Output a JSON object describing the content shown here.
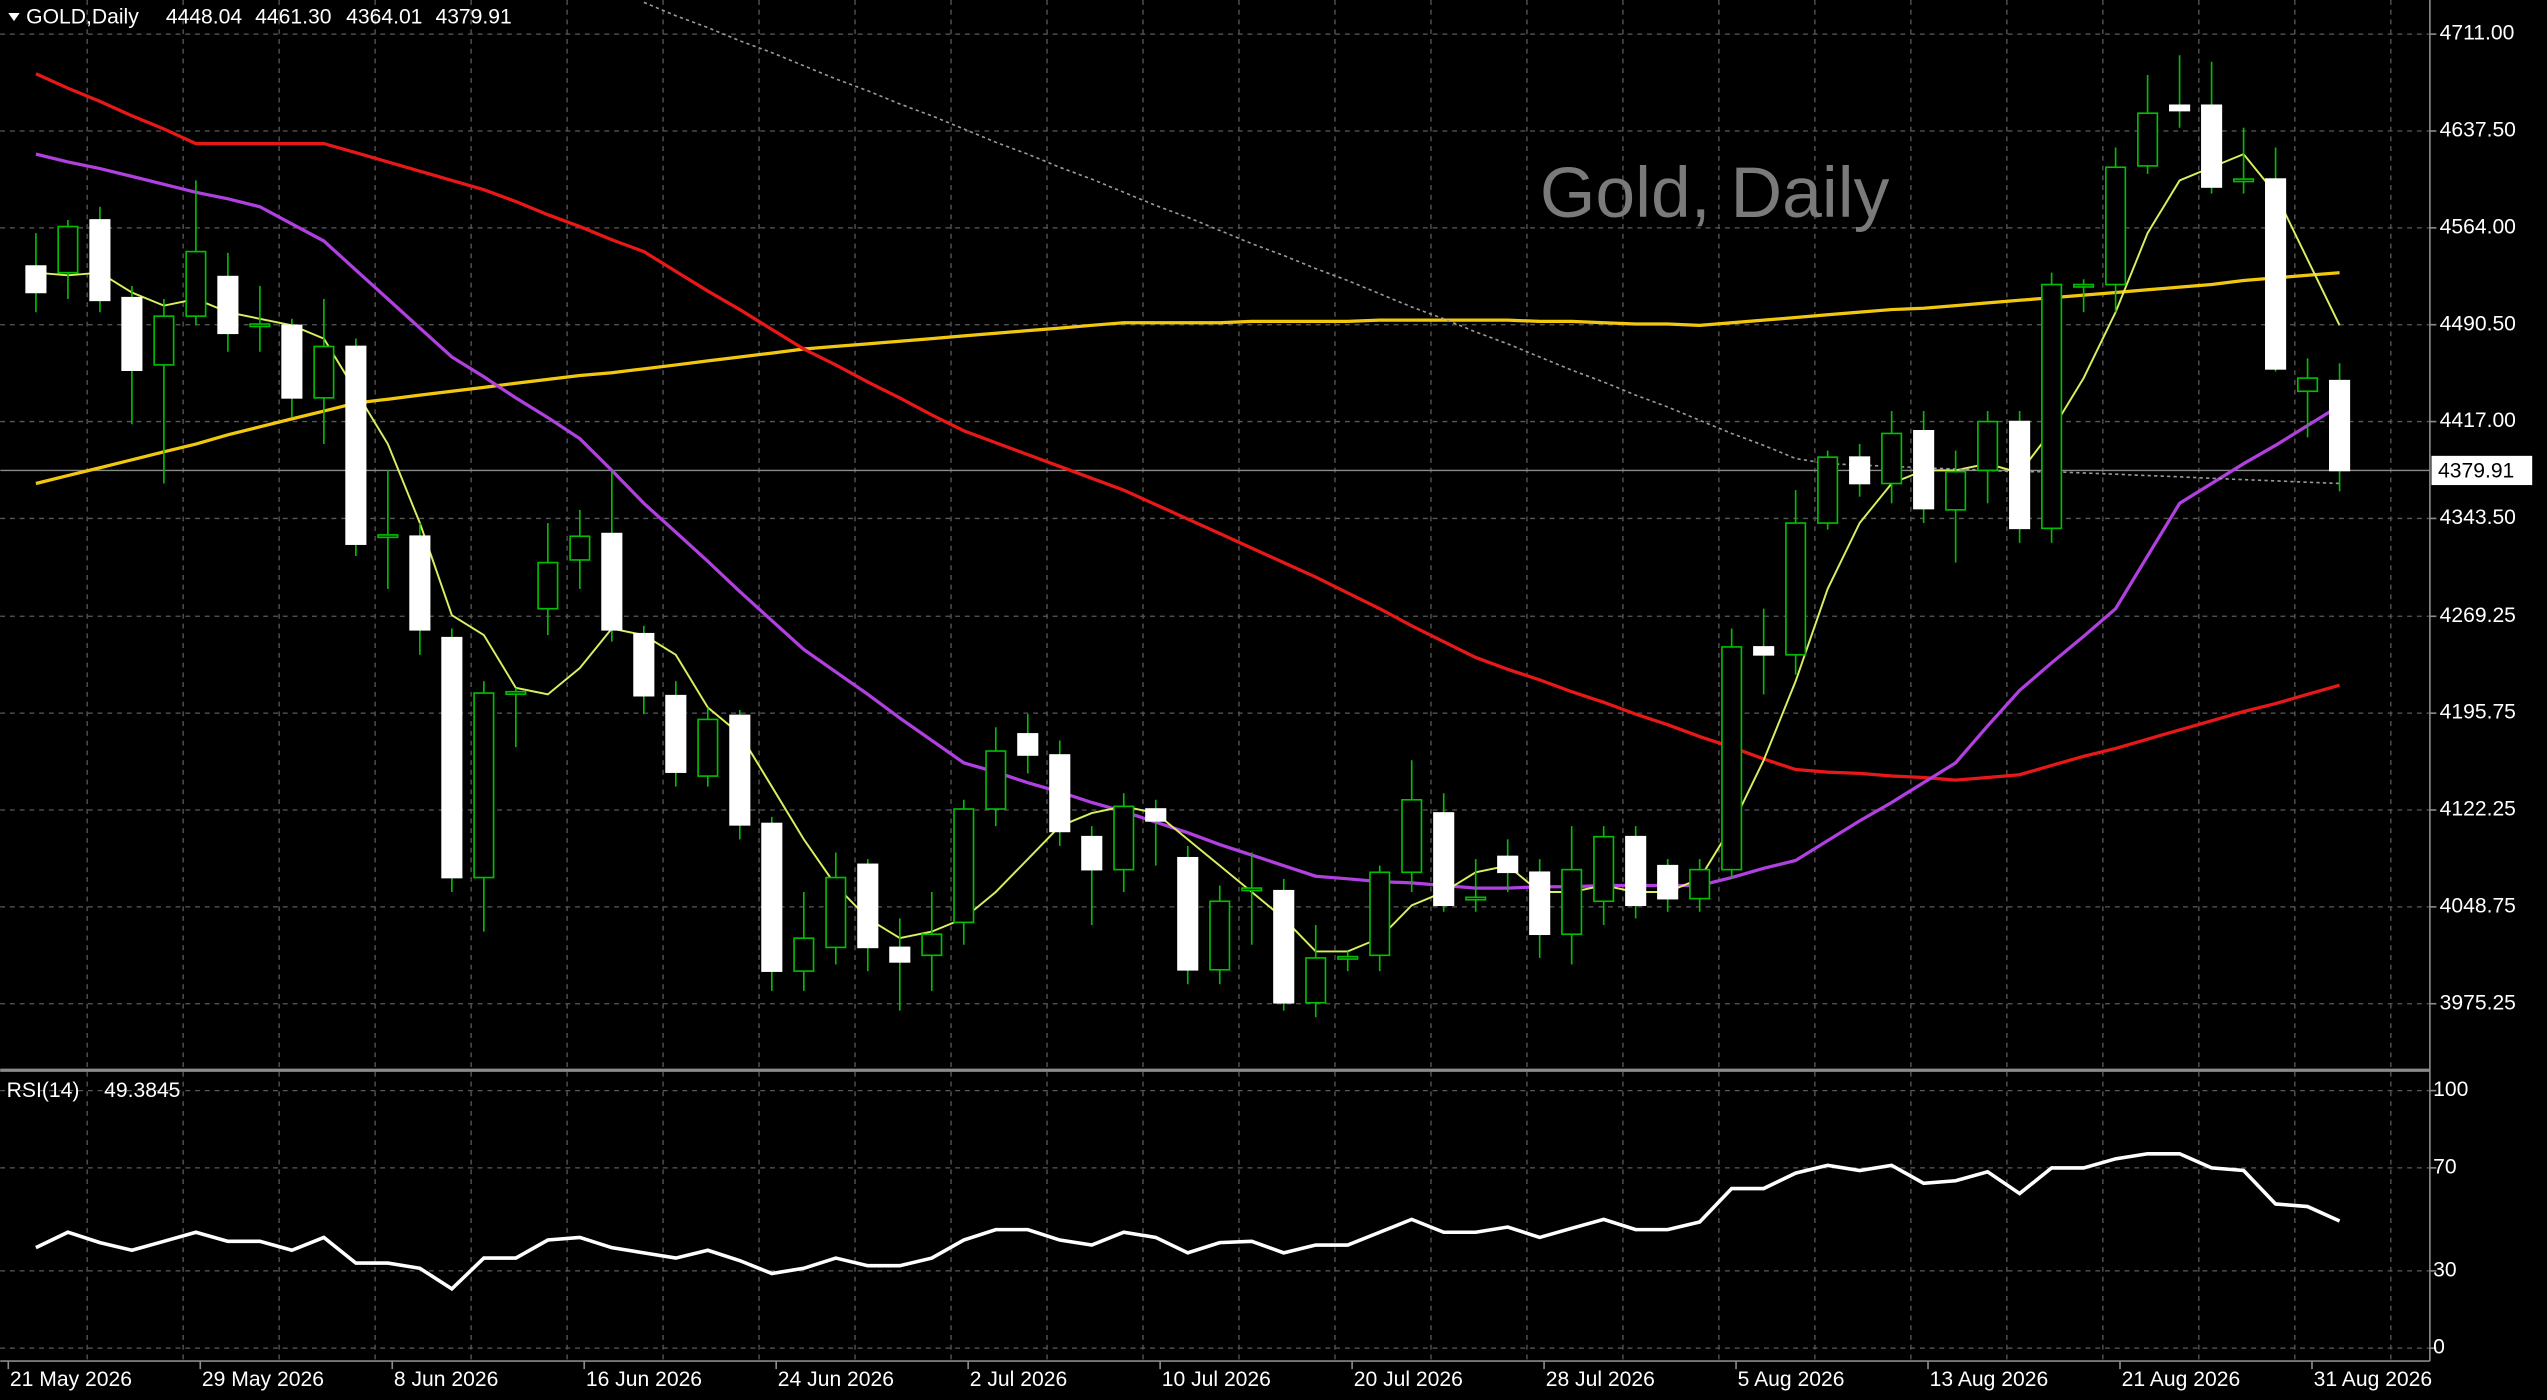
{
  "chart_data": [
    {
      "type": "candlestick",
      "title": "Gold, Daily",
      "header": {
        "symbol": "GOLD,Daily",
        "ohlc": [
          "4448.04",
          "4461.30",
          "4364.01",
          "4379.91"
        ]
      },
      "categories": [
        "21 May 2026",
        null,
        null,
        null,
        null,
        null,
        "29 May 2026",
        null,
        null,
        null,
        null,
        null,
        "8 Jun 2026",
        null,
        null,
        null,
        null,
        null,
        "16 Jun 2026",
        null,
        null,
        null,
        null,
        null,
        "24 Jun 2026",
        null,
        null,
        null,
        null,
        null,
        "2 Jul 2026",
        null,
        null,
        null,
        null,
        null,
        "10 Jul 2026",
        null,
        null,
        null,
        null,
        null,
        "20 Jul 2026",
        null,
        null,
        null,
        null,
        null,
        "28 Jul 2026",
        null,
        null,
        null,
        null,
        null,
        "5 Aug 2026",
        null,
        null,
        null,
        null,
        null,
        "13 Aug 2026",
        null,
        null,
        null,
        null,
        null,
        "21 Aug 2026",
        null,
        null,
        null,
        null,
        null,
        "31 Aug 2026"
      ],
      "open": [
        4535,
        4530,
        4570,
        4511,
        4460,
        4497,
        4527,
        4490,
        4490,
        4435,
        4474,
        4330,
        4330,
        4253,
        4071,
        4211,
        4275,
        4312,
        4332,
        4256,
        4209,
        4148,
        4194,
        4112,
        4000,
        4018,
        4081,
        4018,
        4012,
        4037,
        4123,
        4180,
        4164,
        4102,
        4077,
        4123,
        4086,
        4001,
        4062,
        4061,
        3976,
        4010,
        4012,
        4075,
        4120,
        4055,
        4087,
        4075,
        4028,
        4053,
        4102,
        4080,
        4055,
        4077,
        4246,
        4240,
        4340,
        4390,
        4370,
        4410,
        4350,
        4380,
        4417,
        4336,
        4520,
        4521,
        4611,
        4657,
        4657,
        4600,
        4601,
        4440,
        4448.04
      ],
      "high": [
        4560,
        4570,
        4580,
        4520,
        4510,
        4600,
        4545,
        4520,
        4495,
        4510,
        4480,
        4380,
        4340,
        4260,
        4220,
        4215,
        4340,
        4350,
        4380,
        4262,
        4220,
        4200,
        4198,
        4117,
        4060,
        4090,
        4085,
        4040,
        4060,
        4130,
        4185,
        4195,
        4175,
        4110,
        4135,
        4130,
        4095,
        4065,
        4090,
        4070,
        4035,
        4015,
        4080,
        4160,
        4135,
        4085,
        4100,
        4085,
        4110,
        4110,
        4110,
        4085,
        4085,
        4260,
        4275,
        4365,
        4395,
        4400,
        4425,
        4425,
        4395,
        4425,
        4425,
        4530,
        4525,
        4625,
        4680,
        4695,
        4690,
        4640,
        4625,
        4465,
        4461.3
      ],
      "low": [
        4500,
        4510,
        4500,
        4415,
        4370,
        4490,
        4470,
        4470,
        4420,
        4400,
        4315,
        4290,
        4240,
        4060,
        4030,
        4170,
        4255,
        4290,
        4250,
        4195,
        4140,
        4140,
        4100,
        3985,
        3985,
        4005,
        4000,
        3970,
        3985,
        4020,
        4110,
        4150,
        4095,
        4035,
        4060,
        4080,
        3990,
        3990,
        4020,
        3970,
        3965,
        4000,
        4000,
        4060,
        4045,
        4045,
        4060,
        4010,
        4005,
        4035,
        4040,
        4045,
        4045,
        4070,
        4210,
        4225,
        4335,
        4360,
        4355,
        4340,
        4310,
        4355,
        4325,
        4325,
        4500,
        4500,
        4605,
        4640,
        4590,
        4590,
        4455,
        4405,
        4364.01
      ],
      "close": [
        4515,
        4565,
        4509,
        4456,
        4497,
        4546,
        4484,
        4491,
        4435,
        4474,
        4324,
        4331,
        4259,
        4071,
        4211,
        4212,
        4310,
        4330,
        4259,
        4209,
        4151,
        4191,
        4111,
        4000,
        4025,
        4071,
        4018,
        4007,
        4028,
        4123,
        4167,
        4164,
        4106,
        4077,
        4125,
        4114,
        4001,
        4053,
        4063,
        3976,
        4010,
        4011,
        4075,
        4130,
        4050,
        4056,
        4075,
        4028,
        4077,
        4102,
        4050,
        4055,
        4077,
        4246,
        4240,
        4340,
        4390,
        4370,
        4408,
        4351,
        4379,
        4417,
        4336,
        4521,
        4521,
        4610,
        4651,
        4653,
        4595,
        4601,
        4457,
        4450,
        4379.91
      ],
      "candle_colors": {
        "up_fill": "#000000",
        "down_fill": "#ffffff",
        "wick": "#00c000"
      },
      "series": [
        {
          "color": "#f2c80f",
          "width": 2,
          "values": [
            4370,
            4376,
            4382,
            4388,
            4394,
            4400,
            4407,
            4413,
            4419,
            4425,
            4431,
            4434,
            4437,
            4440,
            4443,
            4446,
            4449,
            4452,
            4454,
            4457,
            4460,
            4463,
            4466,
            4469,
            4472,
            4474,
            4476,
            4478,
            4480,
            4482,
            4484,
            4486,
            4488,
            4490,
            4492,
            4492,
            4492,
            4492,
            4493,
            4493,
            4493,
            4493,
            4494,
            4494,
            4494,
            4494,
            4494,
            4493,
            4493,
            4492,
            4491,
            4491,
            4490,
            4492,
            4494,
            4496,
            4498,
            4500,
            4502,
            4503,
            4505,
            4507,
            4509,
            4511,
            4513,
            4515,
            4517,
            4519,
            4521,
            4524,
            4526,
            4528,
            4530
          ]
        },
        {
          "color": "#e81818",
          "width": 2,
          "values": [
            4681,
            4670,
            4660,
            4649,
            4639,
            4628,
            4628,
            4628,
            4628,
            4628,
            4621,
            4614,
            4607,
            4600,
            4593,
            4584,
            4574,
            4565,
            4555,
            4546,
            4531,
            4516,
            4502,
            4487,
            4472,
            4460,
            4447,
            4435,
            4422,
            4410,
            4401,
            4392,
            4383,
            4374,
            4365,
            4354,
            4343,
            4332,
            4321,
            4310,
            4299,
            4287,
            4275,
            4262,
            4250,
            4238,
            4229,
            4221,
            4212,
            4204,
            4195,
            4187,
            4178,
            4170,
            4161,
            4153,
            4151,
            4150,
            4148,
            4147,
            4145,
            4147,
            4149,
            4156,
            4163,
            4169,
            4176,
            4183,
            4190,
            4197,
            4203,
            4210,
            4217
          ]
        },
        {
          "color": "#b040e0",
          "width": 2,
          "values": [
            4620,
            4614,
            4609,
            4603,
            4597,
            4591,
            4586,
            4580,
            4567,
            4554,
            4532,
            4510,
            4488,
            4466,
            4451,
            4435,
            4420,
            4404,
            4380,
            4355,
            4333,
            4311,
            4288,
            4266,
            4244,
            4227,
            4210,
            4192,
            4175,
            4158,
            4151,
            4143,
            4136,
            4128,
            4121,
            4113,
            4105,
            4096,
            4088,
            4080,
            4072,
            4070,
            4068,
            4067,
            4065,
            4063,
            4063,
            4064,
            4064,
            4065,
            4065,
            4065,
            4065,
            4071,
            4078,
            4084,
            4099,
            4114,
            4128,
            4143,
            4158,
            4186,
            4213,
            4234,
            4254,
            4275,
            4315,
            4355,
            4370,
            4385,
            4399,
            4414,
            4429
          ]
        },
        {
          "color": "#d8f060",
          "width": 1.2,
          "values": [
            4530,
            4528,
            4530,
            4515,
            4505,
            4510,
            4500,
            4495,
            4490,
            4480,
            4440,
            4400,
            4340,
            4270,
            4255,
            4215,
            4210,
            4230,
            4260,
            4255,
            4240,
            4200,
            4180,
            4140,
            4100,
            4065,
            4040,
            4025,
            4030,
            4040,
            4060,
            4085,
            4110,
            4120,
            4125,
            4120,
            4100,
            4080,
            4060,
            4040,
            4015,
            4015,
            4025,
            4050,
            4060,
            4075,
            4080,
            4060,
            4060,
            4065,
            4060,
            4060,
            4070,
            4110,
            4160,
            4220,
            4290,
            4340,
            4370,
            4380,
            4380,
            4385,
            4378,
            4410,
            4450,
            4500,
            4560,
            4600,
            4610,
            4620,
            4590,
            4540,
            4490
          ]
        },
        {
          "color": "#9a9a9a",
          "width": 1,
          "dashed": true,
          "values": [
            null,
            null,
            null,
            null,
            null,
            null,
            null,
            null,
            null,
            null,
            null,
            null,
            null,
            null,
            null,
            null,
            null,
            null,
            null,
            4735,
            4725,
            4716,
            4706,
            4697,
            4687,
            4677,
            4668,
            4658,
            4649,
            4639,
            4629,
            4620,
            4610,
            4601,
            4591,
            4581,
            4572,
            4562,
            4552,
            4543,
            4533,
            4524,
            4514,
            4504,
            4495,
            4485,
            4476,
            4466,
            4456,
            4447,
            4437,
            4428,
            4418,
            4408,
            4399,
            4389,
            4385,
            4384,
            4383,
            4382,
            4381,
            4380,
            4379,
            4379,
            4378,
            4377,
            4376,
            4375,
            4374,
            4373,
            4372,
            4371,
            4370
          ]
        }
      ],
      "price_label": {
        "value": 4379.91,
        "label": "4379.91"
      },
      "ylim": [
        3923.5,
        4736.9
      ],
      "yticks": [
        {
          "value": 3975.25,
          "label": "3975.25"
        },
        {
          "value": 4048.75,
          "label": "4048.75"
        },
        {
          "value": 4122.25,
          "label": "4122.25"
        },
        {
          "value": 4195.75,
          "label": "4195.75"
        },
        {
          "value": 4269.25,
          "label": "4269.25"
        },
        {
          "value": 4343.5,
          "label": "4343.50"
        },
        {
          "value": 4417,
          "label": "4417.00"
        },
        {
          "value": 4490.5,
          "label": "4490.50"
        },
        {
          "value": 4564,
          "label": "4564.00"
        },
        {
          "value": 4637.5,
          "label": "4637.50"
        },
        {
          "value": 4711,
          "label": "4711.00"
        }
      ],
      "grid": true
    },
    {
      "type": "line",
      "series": [
        {
          "name": "RSI(14)",
          "color": "#ffffff",
          "values": [
            39,
            45,
            41,
            38,
            41.5,
            45,
            41.5,
            41.5,
            38,
            43,
            33,
            33,
            31,
            23,
            35,
            35,
            42,
            43,
            39,
            37,
            35,
            38,
            34,
            29,
            31,
            35,
            32,
            32,
            35,
            42,
            46,
            46,
            42,
            40,
            45,
            43,
            37,
            41,
            41.5,
            37,
            40,
            40,
            45,
            50,
            45,
            45,
            47,
            43,
            46.5,
            50,
            46,
            46,
            49,
            62,
            62,
            68,
            71,
            69,
            71,
            64,
            65,
            68.5,
            60,
            70,
            70,
            73.5,
            75.5,
            75.5,
            70,
            69,
            56,
            55,
            49.3845
          ]
        }
      ],
      "ylim": [
        -5,
        106
      ],
      "yticks": [
        0,
        30,
        70,
        100
      ]
    }
  ]
}
